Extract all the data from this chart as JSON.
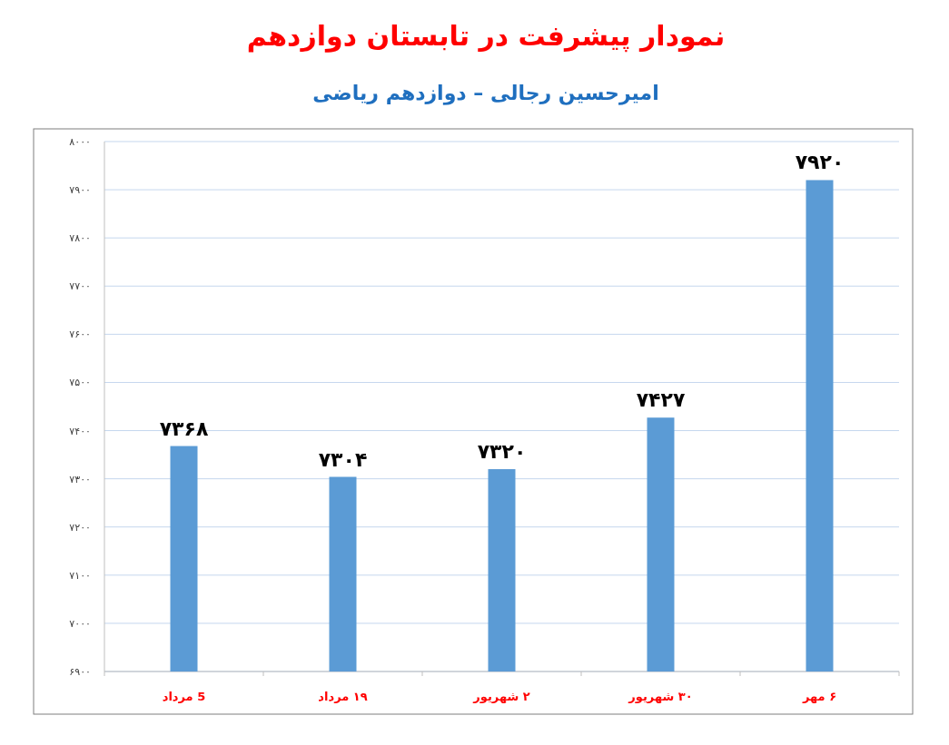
{
  "chart_data": {
    "type": "bar",
    "title": "نمودار پیشرفت در تابستان دوازدهم",
    "subtitle": "امیرحسین رجالی – دوازدهم ریاضی",
    "categories": [
      "5 مرداد",
      "۱۹ مرداد",
      "۲ شهریور",
      "۳۰ شهریور",
      "۶ مهر"
    ],
    "values": [
      7368,
      7304,
      7320,
      7427,
      7920
    ],
    "value_labels": [
      "۷۳۶۸",
      "۷۳۰۴",
      "۷۳۲۰",
      "۷۴۲۷",
      "۷۹۲۰"
    ],
    "color": "#5b9bd5",
    "ylim": [
      6900,
      8000
    ],
    "yticks": [
      {
        "value": 6900,
        "label": "۶۹۰۰"
      },
      {
        "value": 7000,
        "label": "۷۰۰۰"
      },
      {
        "value": 7100,
        "label": "۷۱۰۰"
      },
      {
        "value": 7200,
        "label": "۷۲۰۰"
      },
      {
        "value": 7300,
        "label": "۷۳۰۰"
      },
      {
        "value": 7400,
        "label": "۷۴۰۰"
      },
      {
        "value": 7500,
        "label": "۷۵۰۰"
      },
      {
        "value": 7600,
        "label": "۷۶۰۰"
      },
      {
        "value": 7700,
        "label": "۷۷۰۰"
      },
      {
        "value": 7800,
        "label": "۷۸۰۰"
      },
      {
        "value": 7900,
        "label": "۷۹۰۰"
      },
      {
        "value": 8000,
        "label": "۸۰۰۰"
      }
    ],
    "grid": "y"
  }
}
